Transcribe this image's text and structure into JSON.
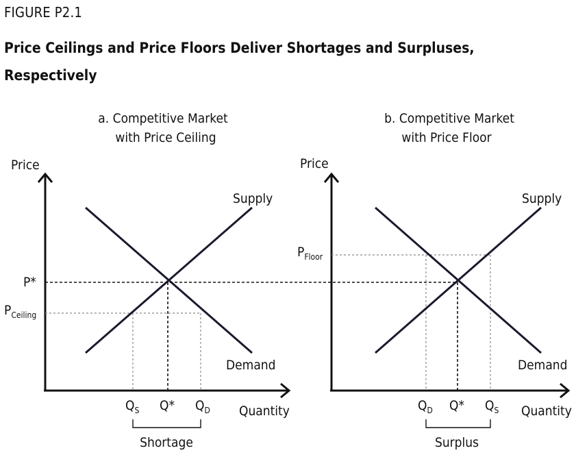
{
  "figure": {
    "label": "FIGURE P2.1",
    "title": "Price Ceilings and Price Floors Deliver Shortages and Surpluses, Respectively"
  },
  "panel_a": {
    "title_line1": "a. Competitive Market",
    "title_line2": "with Price Ceiling",
    "y_axis": "Price",
    "x_axis": "Quantity",
    "supply": "Supply",
    "demand": "Demand",
    "p_star": "P*",
    "p_ceiling_main": "P",
    "p_ceiling_sub": "Ceiling",
    "q_s_main": "Q",
    "q_s_sub": "S",
    "q_star": "Q*",
    "q_d_main": "Q",
    "q_d_sub": "D",
    "gap_label": "Shortage"
  },
  "panel_b": {
    "title_line1": "b. Competitive Market",
    "title_line2": "with Price Floor",
    "y_axis": "Price",
    "x_axis": "Quantity",
    "supply": "Supply",
    "demand": "Demand",
    "p_floor_main": "P",
    "p_floor_sub": "Floor",
    "q_d_main": "Q",
    "q_d_sub": "D",
    "q_star": "Q*",
    "q_s_main": "Q",
    "q_s_sub": "S",
    "gap_label": "Surplus"
  }
}
